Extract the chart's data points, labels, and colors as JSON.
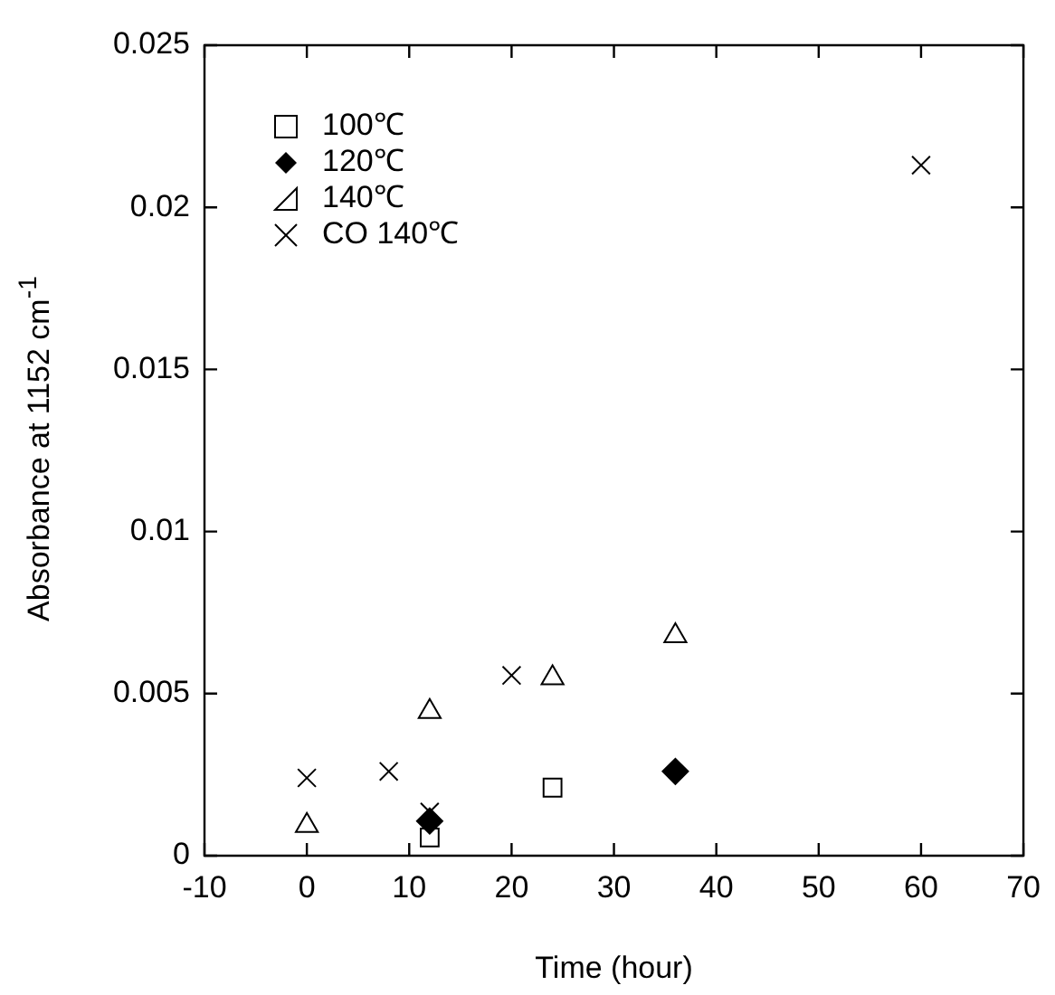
{
  "chart_data": {
    "type": "scatter",
    "xlabel": "Time (hour)",
    "ylabel": "Absorbance at 1152 cm$^{-1}$",
    "xlim": [
      -10,
      70
    ],
    "xticks": [
      -10,
      0,
      10,
      20,
      30,
      40,
      50,
      60,
      70
    ],
    "ylim": [
      0,
      0.025
    ],
    "yticks": [
      0,
      0.005,
      0.01,
      0.015,
      0.02,
      0.025
    ],
    "grid": false,
    "legend": "top left",
    "series": [
      {
        "name": "100℃",
        "color": "#000000",
        "marker": "square",
        "x": [
          12,
          24
        ],
        "values": [
          0.00056,
          0.0021
        ]
      },
      {
        "name": "120℃",
        "color": "#000000",
        "marker": "diamond",
        "x": [
          12,
          36
        ],
        "values": [
          0.00107,
          0.0026
        ]
      },
      {
        "name": "140℃",
        "color": "#000000",
        "marker": "triangle",
        "x": [
          0,
          12,
          24,
          36
        ],
        "values": [
          0.00093,
          0.00444,
          0.00548,
          0.00678
        ]
      },
      {
        "name": "CO 140℃",
        "color": "#000000",
        "marker": "cross",
        "x": [
          0,
          8,
          12,
          20,
          60
        ],
        "values": [
          0.0024,
          0.0026,
          0.00135,
          0.00556,
          0.0213
        ]
      }
    ]
  }
}
